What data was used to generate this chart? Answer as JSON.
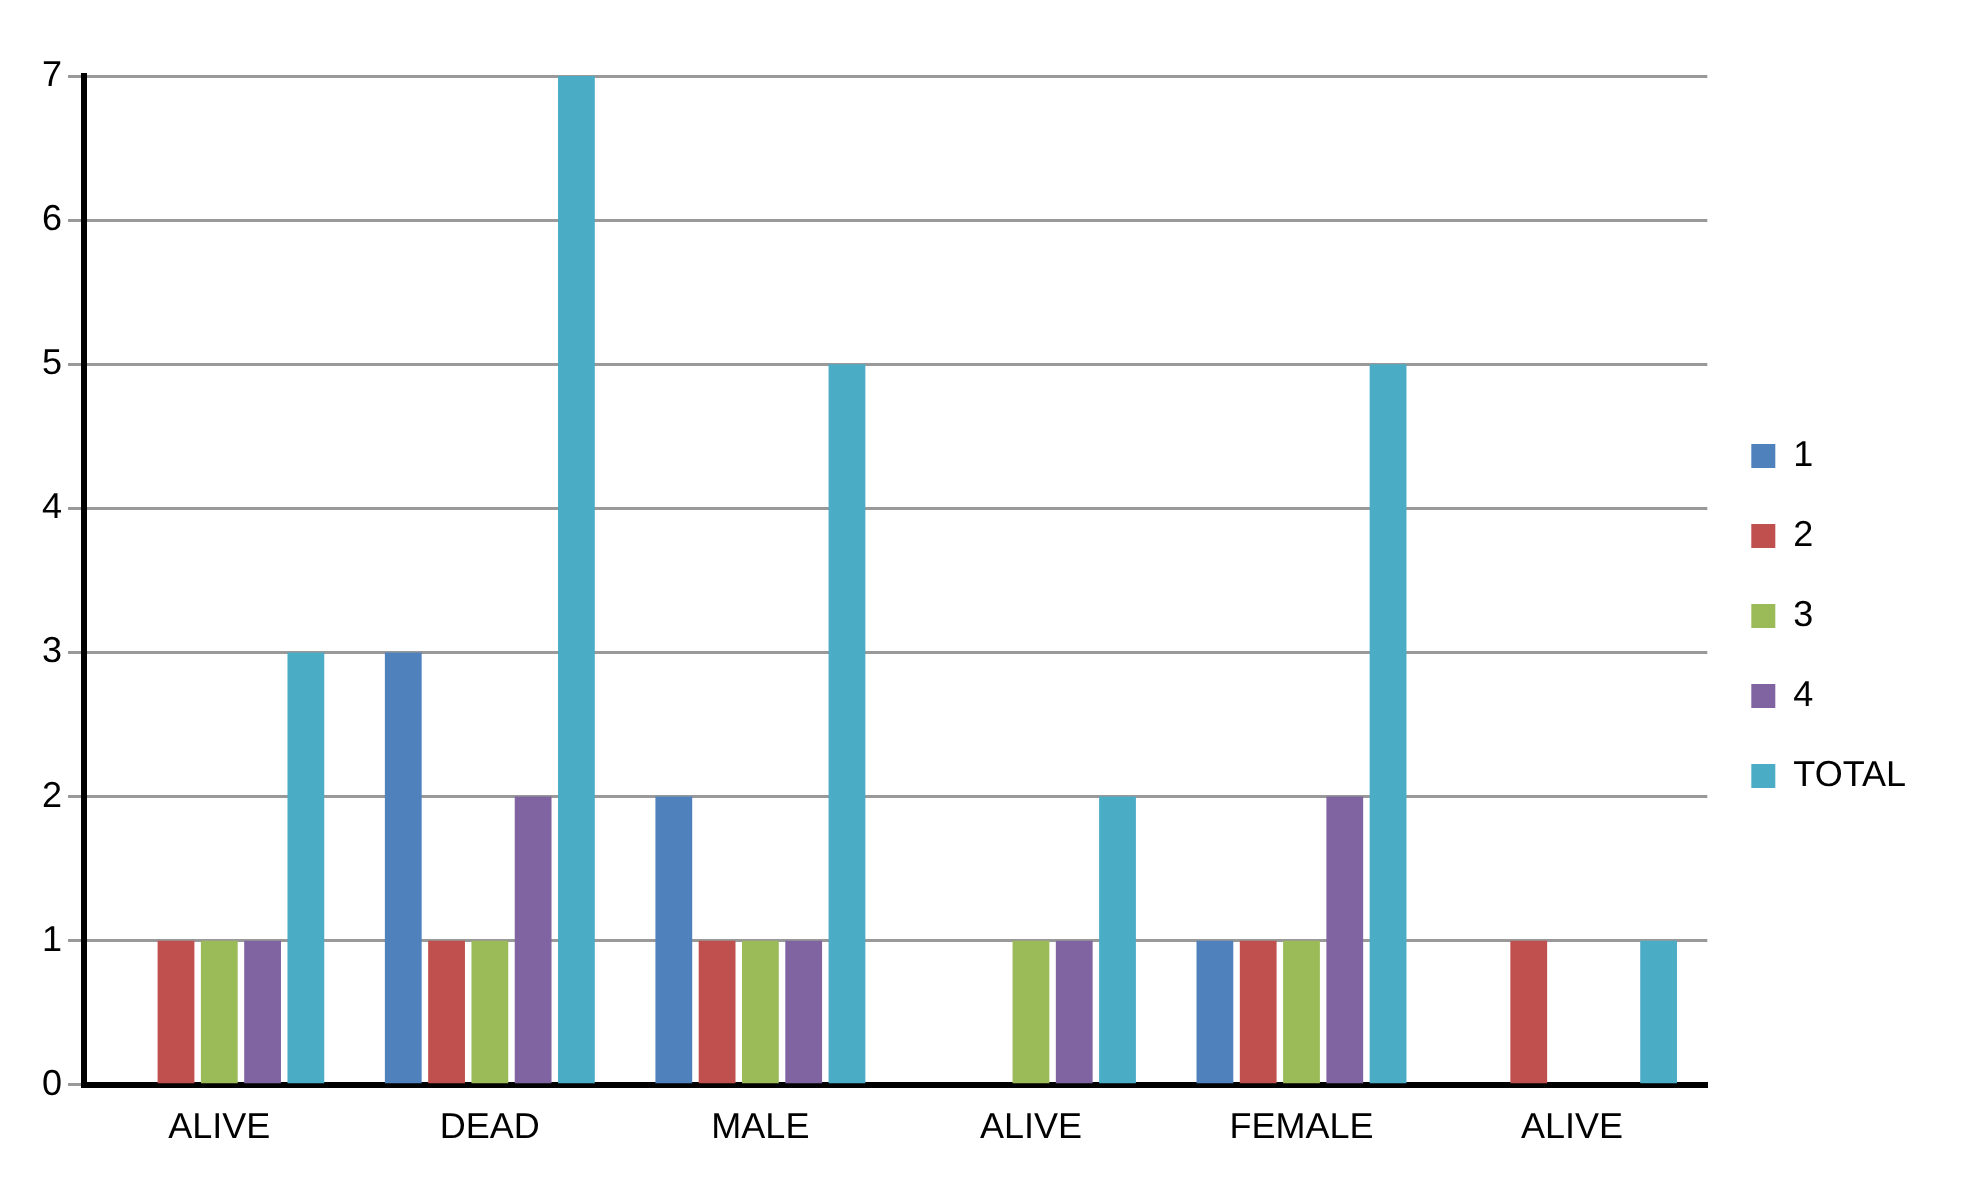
{
  "chart_data": {
    "type": "bar",
    "categories": [
      "ALIVE",
      "DEAD",
      "MALE",
      "ALIVE",
      "FEMALE",
      "ALIVE"
    ],
    "series": [
      {
        "name": "1",
        "color": "#4f81bd",
        "values": [
          0,
          3,
          2,
          0,
          1,
          0
        ]
      },
      {
        "name": "2",
        "color": "#c0504d",
        "values": [
          1,
          1,
          1,
          0,
          1,
          1
        ]
      },
      {
        "name": "3",
        "color": "#9bbb59",
        "values": [
          1,
          1,
          1,
          1,
          1,
          0
        ]
      },
      {
        "name": "4",
        "color": "#8064a2",
        "values": [
          1,
          2,
          1,
          1,
          2,
          0
        ]
      },
      {
        "name": "TOTAL",
        "color": "#4bacc6",
        "values": [
          3,
          7,
          5,
          2,
          5,
          1
        ]
      }
    ],
    "ylim": [
      0,
      7
    ],
    "yticks": [
      0,
      1,
      2,
      3,
      4,
      5,
      6,
      7
    ],
    "grid": "y",
    "legend": "right"
  }
}
